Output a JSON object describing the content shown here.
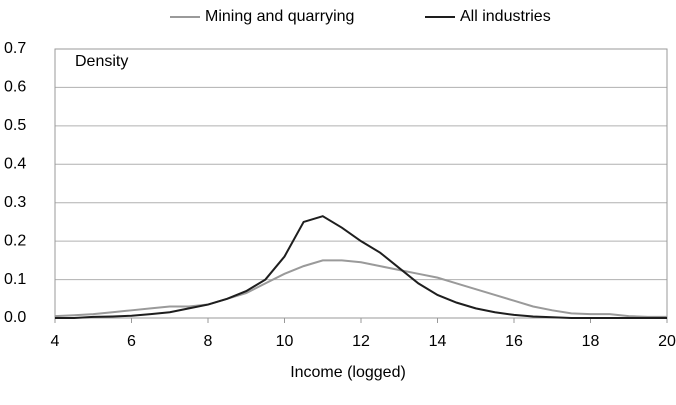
{
  "chart_data": {
    "type": "line",
    "y_axis_label": "Density",
    "x_axis_label": "Income (logged)",
    "x": [
      4,
      4.5,
      5,
      5.5,
      6,
      6.5,
      7,
      7.5,
      8,
      8.5,
      9,
      9.5,
      10,
      10.5,
      11,
      11.5,
      12,
      12.5,
      13,
      13.5,
      14,
      14.5,
      15,
      15.5,
      16,
      16.5,
      17,
      17.5,
      18,
      18.5,
      19,
      19.5,
      20
    ],
    "series": [
      {
        "name": "Mining and quarrying",
        "color": "#9a9a9a",
        "values": [
          0.005,
          0.007,
          0.01,
          0.015,
          0.02,
          0.025,
          0.03,
          0.03,
          0.035,
          0.05,
          0.065,
          0.09,
          0.115,
          0.135,
          0.15,
          0.15,
          0.145,
          0.135,
          0.125,
          0.115,
          0.105,
          0.09,
          0.075,
          0.06,
          0.045,
          0.03,
          0.02,
          0.012,
          0.01,
          0.01,
          0.005,
          0.003,
          0.003
        ]
      },
      {
        "name": "All industries",
        "color": "#1e1e1e",
        "values": [
          0,
          0,
          0.003,
          0.004,
          0.006,
          0.01,
          0.015,
          0.025,
          0.035,
          0.05,
          0.07,
          0.1,
          0.16,
          0.25,
          0.265,
          0.235,
          0.2,
          0.17,
          0.13,
          0.09,
          0.06,
          0.04,
          0.025,
          0.015,
          0.008,
          0.004,
          0.002,
          0,
          0,
          0,
          0,
          0,
          0
        ]
      }
    ],
    "xlim": [
      4,
      20
    ],
    "xticks": [
      4,
      6,
      8,
      10,
      12,
      14,
      16,
      18,
      20
    ],
    "ylim": [
      0,
      0.7
    ],
    "yticks": [
      {
        "value": 0,
        "label": "0.0"
      },
      0.1,
      0.2,
      0.3,
      0.4,
      0.5,
      0.6,
      0.7
    ],
    "grid": true
  }
}
